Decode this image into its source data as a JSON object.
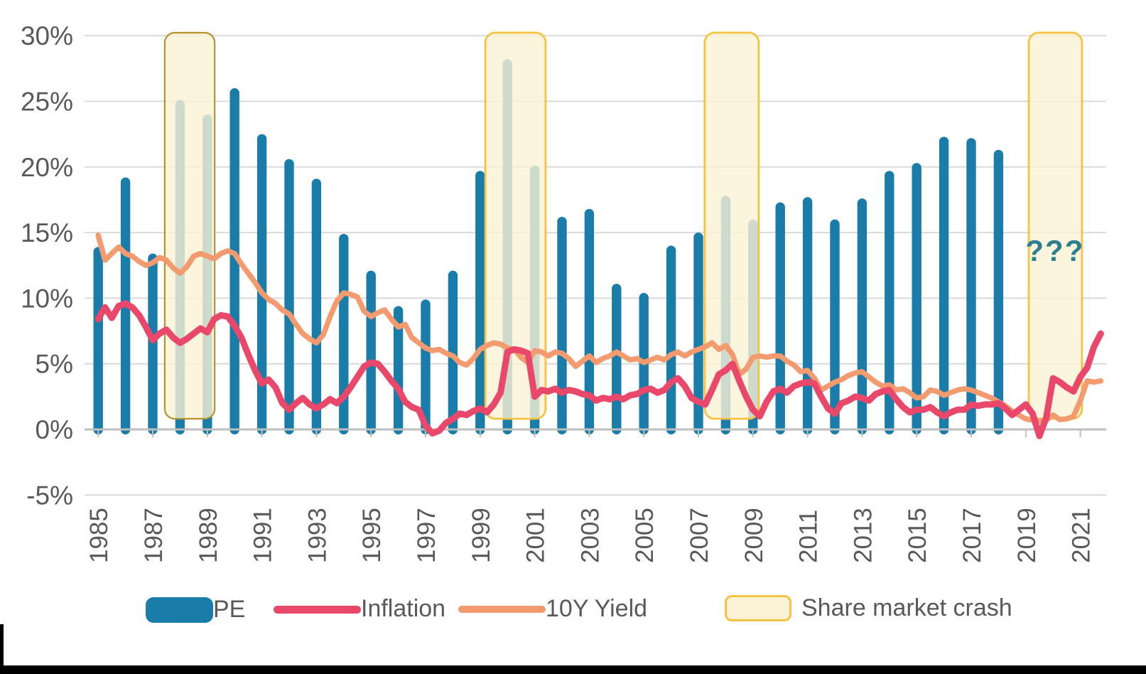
{
  "page": {
    "background": "#ffffff",
    "bottom_edge_color": "#000000"
  },
  "legend": {
    "items": [
      {
        "label": "PE",
        "swatch": "bar-swatch",
        "color": "#1A7CA8"
      },
      {
        "label": "Inflation",
        "swatch": "line-swatch",
        "color": "#E9486B"
      },
      {
        "label": "10Y Yield",
        "swatch": "line-swatch",
        "color": "#F49A6F"
      },
      {
        "label": "Share market crash",
        "swatch": "box-swatch",
        "color": "#F5C242"
      }
    ]
  },
  "chart_data": {
    "type": "bar",
    "subtype": "combo-bar-and-line",
    "title": "",
    "xlabel": "",
    "ylabel": "",
    "grid": true,
    "legend_position": "bottom",
    "ylim": [
      -5,
      30
    ],
    "y_axis": {
      "tick_values": [
        30,
        25,
        20,
        15,
        10,
        5,
        0,
        -5
      ],
      "tick_labels": [
        "30%",
        "25%",
        "20%",
        "15%",
        "10%",
        "5%",
        "0%",
        "-5%"
      ]
    },
    "x_axis": {
      "tick_years": [
        1985,
        1987,
        1989,
        1991,
        1993,
        1995,
        1997,
        1999,
        2001,
        2003,
        2005,
        2007,
        2009,
        2011,
        2013,
        2015,
        2017,
        2019,
        2021
      ]
    },
    "bars": {
      "name": "PE",
      "color": "#1A7CA8",
      "years": [
        1985,
        1986,
        1987,
        1988,
        1989,
        1990,
        1991,
        1992,
        1993,
        1994,
        1995,
        1996,
        1997,
        1998,
        1999,
        2000,
        2001,
        2002,
        2003,
        2004,
        2005,
        2006,
        2007,
        2008,
        2009,
        2010,
        2011,
        2012,
        2013,
        2014,
        2015,
        2016,
        2017,
        2018
      ],
      "values": [
        13.9,
        19.2,
        13.4,
        25.1,
        24.0,
        26.0,
        22.5,
        20.6,
        19.1,
        14.9,
        12.1,
        9.4,
        9.9,
        12.1,
        19.7,
        28.2,
        20.1,
        16.2,
        16.8,
        11.1,
        10.4,
        14.0,
        15.0,
        17.8,
        16.0,
        17.3,
        17.7,
        16.0,
        17.6,
        19.7,
        20.3,
        22.3,
        22.2,
        21.3
      ]
    },
    "series": [
      {
        "name": "Inflation",
        "color": "#E9486B",
        "stroke_width": 9,
        "x_start": 1985.0,
        "x_step": 0.25,
        "values": [
          8.4,
          9.3,
          8.5,
          9.4,
          9.6,
          9.3,
          8.7,
          7.8,
          6.8,
          7.3,
          7.6,
          7.0,
          6.6,
          6.9,
          7.3,
          7.7,
          7.4,
          8.4,
          8.7,
          8.6,
          7.9,
          7.0,
          5.7,
          4.5,
          3.5,
          3.8,
          3.2,
          2.0,
          1.5,
          2.0,
          2.4,
          1.9,
          1.6,
          1.9,
          2.3,
          2.0,
          2.5,
          3.2,
          4.0,
          4.8,
          5.1,
          5.0,
          4.4,
          3.7,
          3.1,
          2.1,
          1.7,
          1.5,
          0.3,
          -0.3,
          -0.1,
          0.5,
          0.8,
          1.2,
          1.1,
          1.4,
          1.6,
          1.3,
          1.9,
          2.8,
          5.9,
          6.1,
          6.0,
          5.8,
          2.5,
          3.0,
          2.9,
          3.1,
          2.8,
          3.0,
          2.9,
          2.7,
          2.6,
          2.2,
          2.4,
          2.3,
          2.5,
          2.3,
          2.6,
          2.7,
          3.0,
          3.1,
          2.8,
          3.0,
          3.6,
          3.9,
          3.3,
          2.4,
          2.1,
          1.9,
          3.0,
          4.2,
          4.5,
          5.0,
          3.7,
          2.5,
          1.5,
          1.0,
          2.1,
          2.9,
          3.1,
          2.8,
          3.3,
          3.5,
          3.6,
          3.5,
          2.5,
          1.6,
          1.2,
          2.0,
          2.2,
          2.5,
          2.4,
          2.2,
          2.7,
          2.9,
          3.0,
          2.3,
          1.7,
          1.3,
          1.5,
          1.5,
          1.7,
          1.3,
          1.0,
          1.3,
          1.5,
          1.5,
          1.9,
          1.8,
          1.9,
          1.9,
          2.0,
          1.6,
          1.1,
          1.5,
          1.9,
          1.2,
          -0.5,
          0.9,
          3.9,
          3.6,
          3.2,
          2.9,
          4.0,
          4.7,
          6.3,
          7.3
        ]
      },
      {
        "name": "10Y Yield",
        "color": "#F49A6F",
        "stroke_width": 7.5,
        "x_start": 1985.0,
        "x_step": 0.25,
        "values": [
          14.8,
          12.9,
          13.4,
          13.9,
          13.4,
          13.2,
          12.8,
          12.5,
          12.7,
          13.1,
          12.9,
          12.3,
          11.9,
          12.4,
          13.2,
          13.4,
          13.2,
          13.0,
          13.4,
          13.6,
          13.4,
          12.6,
          11.9,
          11.2,
          10.4,
          9.9,
          9.6,
          9.1,
          8.8,
          8.0,
          7.3,
          6.9,
          6.6,
          7.2,
          8.6,
          9.8,
          10.4,
          10.3,
          10.1,
          9.0,
          8.6,
          8.9,
          9.1,
          8.4,
          7.8,
          8.0,
          7.0,
          6.6,
          6.2,
          6.0,
          6.1,
          5.8,
          5.6,
          5.1,
          4.9,
          5.4,
          6.1,
          6.4,
          6.6,
          6.5,
          6.2,
          6.1,
          5.5,
          5.1,
          6.0,
          5.9,
          5.6,
          5.9,
          5.8,
          5.4,
          4.8,
          5.2,
          5.6,
          5.1,
          5.4,
          5.6,
          5.9,
          5.6,
          5.3,
          5.4,
          5.1,
          5.3,
          5.5,
          5.3,
          5.7,
          5.9,
          5.6,
          5.9,
          6.1,
          6.3,
          6.6,
          6.1,
          6.4,
          5.7,
          4.2,
          4.6,
          5.5,
          5.6,
          5.5,
          5.6,
          5.6,
          5.2,
          4.9,
          4.4,
          4.5,
          3.9,
          3.0,
          3.3,
          3.6,
          3.8,
          4.1,
          4.3,
          4.4,
          4.0,
          3.6,
          3.3,
          3.4,
          3.0,
          3.1,
          2.8,
          2.4,
          2.5,
          3.0,
          2.9,
          2.6,
          2.8,
          3.0,
          3.1,
          3.0,
          2.8,
          2.6,
          2.4,
          2.1,
          1.8,
          1.4,
          1.1,
          0.8,
          0.7,
          0.65,
          0.7,
          1.1,
          0.75,
          0.8,
          1.0,
          2.2,
          3.7,
          3.6,
          3.7
        ]
      }
    ],
    "crash_regions": {
      "label": "Share market crash",
      "fill": "#FBF2D5",
      "fill_opacity": 0.8,
      "border": "#F5C242",
      "first_border": "#B5932E",
      "ranges": [
        [
          1987.44,
          1989.27
        ],
        [
          1999.19,
          2001.4
        ],
        [
          2007.23,
          2009.21
        ],
        [
          2019.11,
          2021.06
        ]
      ]
    },
    "annotation": {
      "text": "???",
      "x": 2020.07,
      "y": 12.84,
      "color": "#2E7E91",
      "font_size": 42
    }
  }
}
